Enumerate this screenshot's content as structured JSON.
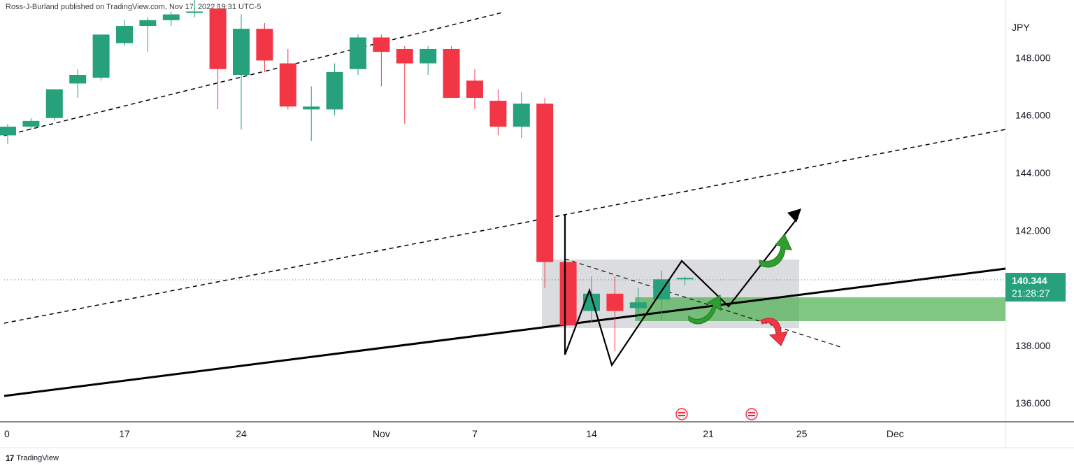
{
  "header": {
    "published": "Ross-J-Burland published on TradingView.com, Nov 17, 2022 19:31 UTC-5"
  },
  "footer": {
    "brand": "TradingView"
  },
  "price_box": {
    "price": "140.344",
    "countdown": "21:28:27"
  },
  "colors": {
    "up": "#26a17b",
    "down": "#f23645",
    "box": "#cfd0d4",
    "zone": "#4caf50",
    "trend": "#000000"
  },
  "chart_data": {
    "type": "candlestick",
    "currency_label": "JPY",
    "y_ticks": [
      "148.000",
      "146.000",
      "144.000",
      "142.000",
      "138.000",
      "136.000"
    ],
    "ylim": [
      135.35,
      150.0
    ],
    "x_ticks": [
      {
        "label": "0",
        "index": 0
      },
      {
        "label": "17",
        "index": 5
      },
      {
        "label": "24",
        "index": 10
      },
      {
        "label": "Nov",
        "index": 16
      },
      {
        "label": "7",
        "index": 20
      },
      {
        "label": "14",
        "index": 25
      },
      {
        "label": "21",
        "index": 30
      },
      {
        "label": "25",
        "index": 34
      },
      {
        "label": "Dec",
        "index": 38
      }
    ],
    "candles": [
      {
        "o": 145.3,
        "h": 145.7,
        "l": 145.0,
        "c": 145.6
      },
      {
        "o": 145.6,
        "h": 145.9,
        "l": 145.5,
        "c": 145.8
      },
      {
        "o": 145.9,
        "h": 146.9,
        "l": 145.8,
        "c": 146.9
      },
      {
        "o": 147.1,
        "h": 147.6,
        "l": 146.6,
        "c": 147.4
      },
      {
        "o": 147.3,
        "h": 148.8,
        "l": 147.2,
        "c": 148.8
      },
      {
        "o": 148.5,
        "h": 149.3,
        "l": 148.4,
        "c": 149.1
      },
      {
        "o": 149.1,
        "h": 149.4,
        "l": 148.2,
        "c": 149.3
      },
      {
        "o": 149.3,
        "h": 149.6,
        "l": 149.1,
        "c": 149.5
      },
      {
        "o": 149.6,
        "h": 150.0,
        "l": 149.4,
        "c": 149.6
      },
      {
        "o": 149.7,
        "h": 149.9,
        "l": 146.2,
        "c": 147.6
      },
      {
        "o": 147.4,
        "h": 149.5,
        "l": 145.5,
        "c": 149.0
      },
      {
        "o": 149.0,
        "h": 149.2,
        "l": 147.5,
        "c": 147.9
      },
      {
        "o": 147.8,
        "h": 148.3,
        "l": 146.2,
        "c": 146.3
      },
      {
        "o": 146.2,
        "h": 147.0,
        "l": 145.1,
        "c": 146.3
      },
      {
        "o": 146.2,
        "h": 147.8,
        "l": 146.0,
        "c": 147.5
      },
      {
        "o": 147.6,
        "h": 148.8,
        "l": 147.4,
        "c": 148.7
      },
      {
        "o": 148.7,
        "h": 148.8,
        "l": 147.0,
        "c": 148.2
      },
      {
        "o": 148.3,
        "h": 148.4,
        "l": 145.7,
        "c": 147.8
      },
      {
        "o": 147.8,
        "h": 148.4,
        "l": 147.4,
        "c": 148.3
      },
      {
        "o": 148.3,
        "h": 148.4,
        "l": 146.6,
        "c": 146.6
      },
      {
        "o": 147.2,
        "h": 147.6,
        "l": 146.2,
        "c": 146.6
      },
      {
        "o": 146.5,
        "h": 146.9,
        "l": 145.3,
        "c": 145.6
      },
      {
        "o": 145.6,
        "h": 146.8,
        "l": 145.2,
        "c": 146.4
      },
      {
        "o": 146.4,
        "h": 146.6,
        "l": 140.0,
        "c": 140.9
      },
      {
        "o": 140.9,
        "h": 140.9,
        "l": 138.7,
        "c": 138.7
      },
      {
        "o": 139.2,
        "h": 140.4,
        "l": 138.8,
        "c": 139.8
      },
      {
        "o": 139.8,
        "h": 140.4,
        "l": 137.8,
        "c": 139.2
      },
      {
        "o": 139.3,
        "h": 140.0,
        "l": 138.9,
        "c": 139.5
      },
      {
        "o": 139.6,
        "h": 140.6,
        "l": 138.9,
        "c": 140.3
      },
      {
        "o": 140.3,
        "h": 140.4,
        "l": 140.1,
        "c": 140.35
      }
    ]
  }
}
